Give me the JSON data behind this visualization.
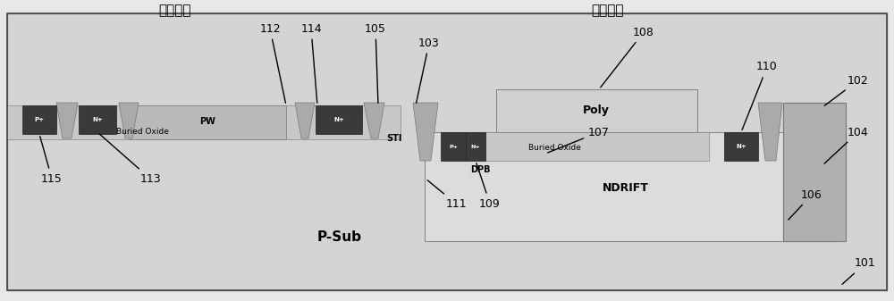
{
  "fig_width": 10.0,
  "fig_height": 3.37,
  "bg_color": "#e8e8e8",
  "psub_color": "#d0d0d0",
  "soi_lv_color": "#c0c0c0",
  "pwell_color": "#b8b8b8",
  "ndrift_color": "#dcdcdc",
  "buried_oxide_hv_color": "#c8c8c8",
  "poly_color": "#d0d0d0",
  "sti_color": "#a0a0a0",
  "doping_dark": "#3a3a3a",
  "title_lv": "低压区域",
  "title_hv": "高压区域",
  "psub_label": "P-Sub",
  "ndrift_label": "NDRIFT",
  "dpb_label": "DPB",
  "sti_label": "STI",
  "buried_oxide_label": "Buried Oxide",
  "poly_label": "Poly",
  "pw_label": "PW"
}
